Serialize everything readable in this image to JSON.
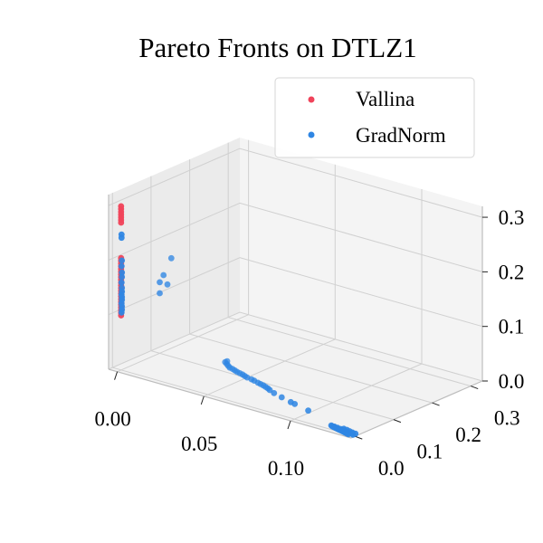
{
  "chart_data": {
    "type": "scatter",
    "title": "Pareto Fronts on DTLZ1",
    "xlabel": "",
    "ylabel": "",
    "zlabel": "",
    "xlim": [
      -0.005,
      0.135
    ],
    "ylim": [
      -0.01,
      0.33
    ],
    "zlim": [
      0,
      0.32
    ],
    "x_ticks": [
      "0.00",
      "0.05",
      "0.10"
    ],
    "y_ticks": [
      "0.0",
      "0.1",
      "0.2",
      "0.3"
    ],
    "z_ticks": [
      "0.0",
      "0.1",
      "0.2",
      "0.3"
    ],
    "grid": true,
    "legend_position": "top-right",
    "series": [
      {
        "name": "Vallina",
        "color": "#f0435a",
        "points": [
          [
            0.0,
            0.0,
            0.3
          ],
          [
            0.0,
            0.0,
            0.295
          ],
          [
            0.0,
            0.0,
            0.29
          ],
          [
            0.0,
            0.0,
            0.285
          ],
          [
            0.0,
            0.0,
            0.28
          ],
          [
            0.0,
            0.0,
            0.275
          ],
          [
            0.0,
            0.0,
            0.27
          ],
          [
            0.0,
            0.0,
            0.205
          ],
          [
            0.0,
            0.0,
            0.2
          ],
          [
            0.0,
            0.0,
            0.195
          ],
          [
            0.0,
            0.0,
            0.19
          ],
          [
            0.0,
            0.0,
            0.185
          ],
          [
            0.0,
            0.0,
            0.18
          ],
          [
            0.0,
            0.0,
            0.175
          ],
          [
            0.0,
            0.0,
            0.17
          ],
          [
            0.0,
            0.0,
            0.165
          ],
          [
            0.0,
            0.0,
            0.16
          ],
          [
            0.0,
            0.0,
            0.155
          ],
          [
            0.0,
            0.0,
            0.15
          ],
          [
            0.0,
            0.0,
            0.145
          ],
          [
            0.0,
            0.0,
            0.14
          ],
          [
            0.0,
            0.0,
            0.135
          ],
          [
            0.0,
            0.0,
            0.13
          ],
          [
            0.0,
            0.0,
            0.125
          ],
          [
            0.0,
            0.0,
            0.12
          ],
          [
            0.0,
            0.0,
            0.115
          ],
          [
            0.0,
            0.0,
            0.11
          ],
          [
            0.0,
            0.0,
            0.105
          ],
          [
            0.0,
            0.0,
            0.1
          ]
        ]
      },
      {
        "name": "GradNorm",
        "color": "#2f86e3",
        "points": [
          [
            0.0,
            0.001,
            0.248
          ],
          [
            0.0,
            0.001,
            0.242
          ],
          [
            0.0,
            0.002,
            0.2
          ],
          [
            0.0,
            0.001,
            0.19
          ],
          [
            0.0,
            0.002,
            0.178
          ],
          [
            0.0,
            0.002,
            0.17
          ],
          [
            0.0,
            0.001,
            0.16
          ],
          [
            0.0,
            0.002,
            0.15
          ],
          [
            0.0,
            0.002,
            0.143
          ],
          [
            0.0,
            0.001,
            0.138
          ],
          [
            0.0,
            0.002,
            0.133
          ],
          [
            0.0,
            0.002,
            0.128
          ],
          [
            0.0,
            0.001,
            0.122
          ],
          [
            0.0,
            0.002,
            0.116
          ],
          [
            0.0,
            0.002,
            0.11
          ],
          [
            0.0,
            0.001,
            0.105
          ],
          [
            0.0,
            0.1,
            0.13
          ],
          [
            0.0,
            0.11,
            0.14
          ],
          [
            0.0,
            0.13,
            0.165
          ],
          [
            0.0,
            0.1,
            0.11
          ],
          [
            0.0,
            0.12,
            0.12
          ],
          [
            0.03,
            0.14,
            0.0
          ],
          [
            0.03,
            0.135,
            0.0
          ],
          [
            0.032,
            0.13,
            0.0
          ],
          [
            0.034,
            0.125,
            0.0
          ],
          [
            0.036,
            0.12,
            0.0
          ],
          [
            0.038,
            0.118,
            0.0
          ],
          [
            0.04,
            0.115,
            0.0
          ],
          [
            0.042,
            0.112,
            0.0
          ],
          [
            0.044,
            0.11,
            0.0
          ],
          [
            0.046,
            0.108,
            0.0
          ],
          [
            0.048,
            0.105,
            0.0
          ],
          [
            0.05,
            0.102,
            0.0
          ],
          [
            0.053,
            0.1,
            0.0
          ],
          [
            0.055,
            0.098,
            0.0
          ],
          [
            0.058,
            0.094,
            0.0
          ],
          [
            0.06,
            0.092,
            0.0
          ],
          [
            0.062,
            0.09,
            0.0
          ],
          [
            0.064,
            0.087,
            0.0
          ],
          [
            0.066,
            0.084,
            0.0
          ],
          [
            0.068,
            0.08,
            0.0
          ],
          [
            0.072,
            0.073,
            0.0
          ],
          [
            0.078,
            0.066,
            0.0
          ],
          [
            0.085,
            0.058,
            0.0
          ],
          [
            0.088,
            0.055,
            0.0
          ],
          [
            0.098,
            0.045,
            0.0
          ],
          [
            0.12,
            0.012,
            0.0
          ],
          [
            0.121,
            0.011,
            0.0
          ],
          [
            0.122,
            0.01,
            0.0
          ],
          [
            0.123,
            0.009,
            0.0
          ],
          [
            0.124,
            0.008,
            0.0
          ],
          [
            0.125,
            0.007,
            0.0
          ],
          [
            0.126,
            0.006,
            0.0
          ],
          [
            0.127,
            0.005,
            0.0
          ],
          [
            0.128,
            0.004,
            0.0
          ],
          [
            0.129,
            0.003,
            0.0
          ],
          [
            0.13,
            0.002,
            0.0
          ],
          [
            0.131,
            0.001,
            0.0
          ],
          [
            0.12,
            0.014,
            0.0
          ],
          [
            0.122,
            0.013,
            0.0
          ],
          [
            0.124,
            0.012,
            0.0
          ],
          [
            0.126,
            0.01,
            0.0
          ],
          [
            0.128,
            0.008,
            0.0
          ],
          [
            0.13,
            0.006,
            0.0
          ],
          [
            0.125,
            0.016,
            0.0
          ],
          [
            0.127,
            0.015,
            0.0
          ],
          [
            0.129,
            0.013,
            0.0
          ],
          [
            0.131,
            0.011,
            0.0
          ],
          [
            0.133,
            0.01,
            0.0
          ],
          [
            0.132,
            0.007,
            0.0
          ],
          [
            0.133,
            0.004,
            0.0
          ],
          [
            0.118,
            0.015,
            0.0
          ],
          [
            0.119,
            0.013,
            0.0
          ]
        ]
      }
    ]
  }
}
